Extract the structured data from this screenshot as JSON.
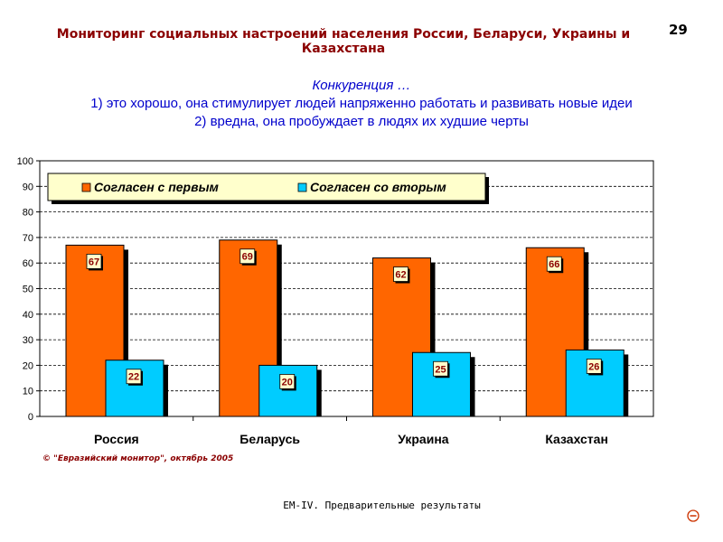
{
  "header": {
    "title": "Мониторинг социальных настроений населения России, Беларуси, Украины и Казахстана",
    "page_number": "29"
  },
  "question": {
    "line1": "Конкуренция …",
    "line2": "1) это хорошо, она стимулирует людей напряженно работать и развивать новые идеи",
    "line3": "2) вредна, она пробуждает в людях их худшие черты"
  },
  "chart_data": {
    "type": "bar",
    "categories": [
      "Россия",
      "Беларусь",
      "Украина",
      "Казахстан"
    ],
    "series": [
      {
        "name": "Согласен с первым",
        "values": [
          67,
          69,
          62,
          66
        ],
        "color": "#FF6600"
      },
      {
        "name": "Согласен со вторым",
        "values": [
          22,
          20,
          25,
          26
        ],
        "color": "#00CCFF"
      }
    ],
    "ylim": [
      0,
      100
    ],
    "yticks": [
      0,
      10,
      20,
      30,
      40,
      50,
      60,
      70,
      80,
      90,
      100
    ],
    "grid": true,
    "legend_position": "top",
    "label_color": "#8B0000",
    "label_bg": "#FFFFCC"
  },
  "footer": {
    "copyright": "© \"Евразийский монитор\", октябрь 2005",
    "note": "EM-IV.  Предварительные  результаты"
  },
  "nav": {
    "icon": "minus-circle-icon",
    "color": "#CC3300"
  }
}
